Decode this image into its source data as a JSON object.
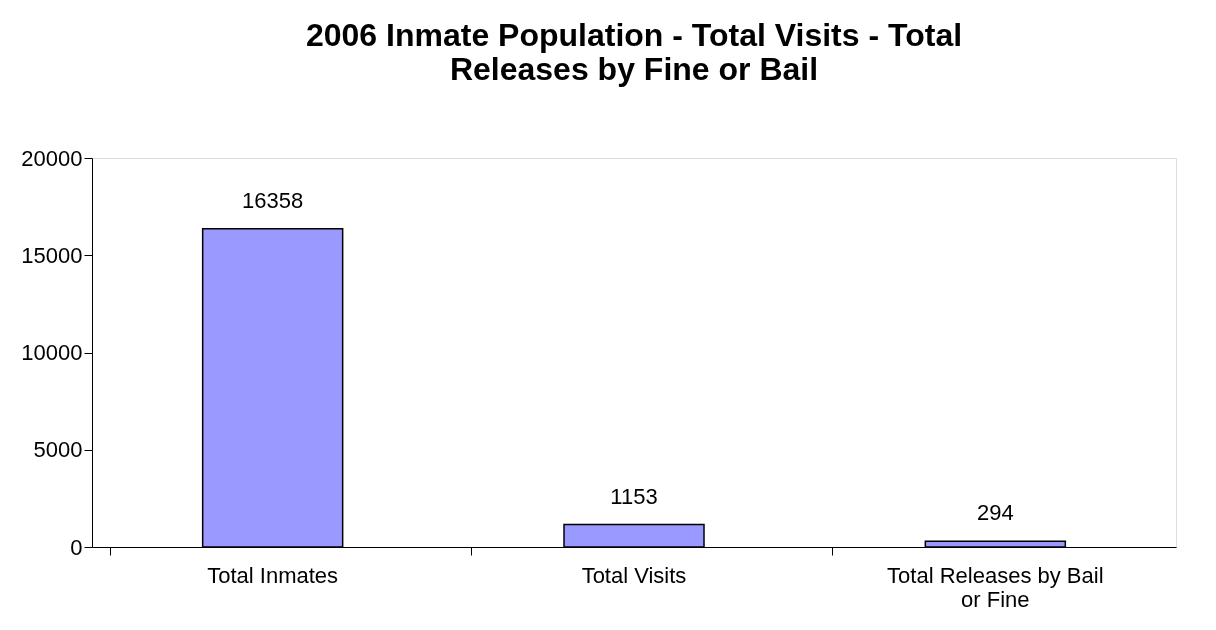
{
  "chart_data": {
    "type": "bar",
    "title": "2006 Inmate Population - Total Visits - Total Releases by Fine or Bail",
    "categories": [
      "Total Inmates",
      "Total Visits",
      "Total Releases by Bail or Fine"
    ],
    "values": [
      16358,
      1153,
      294
    ],
    "color": "#9999ff",
    "ylim": [
      0,
      20000
    ],
    "yticks": [
      0,
      5000,
      10000,
      15000,
      20000
    ],
    "grid": false,
    "data_labels": true
  }
}
